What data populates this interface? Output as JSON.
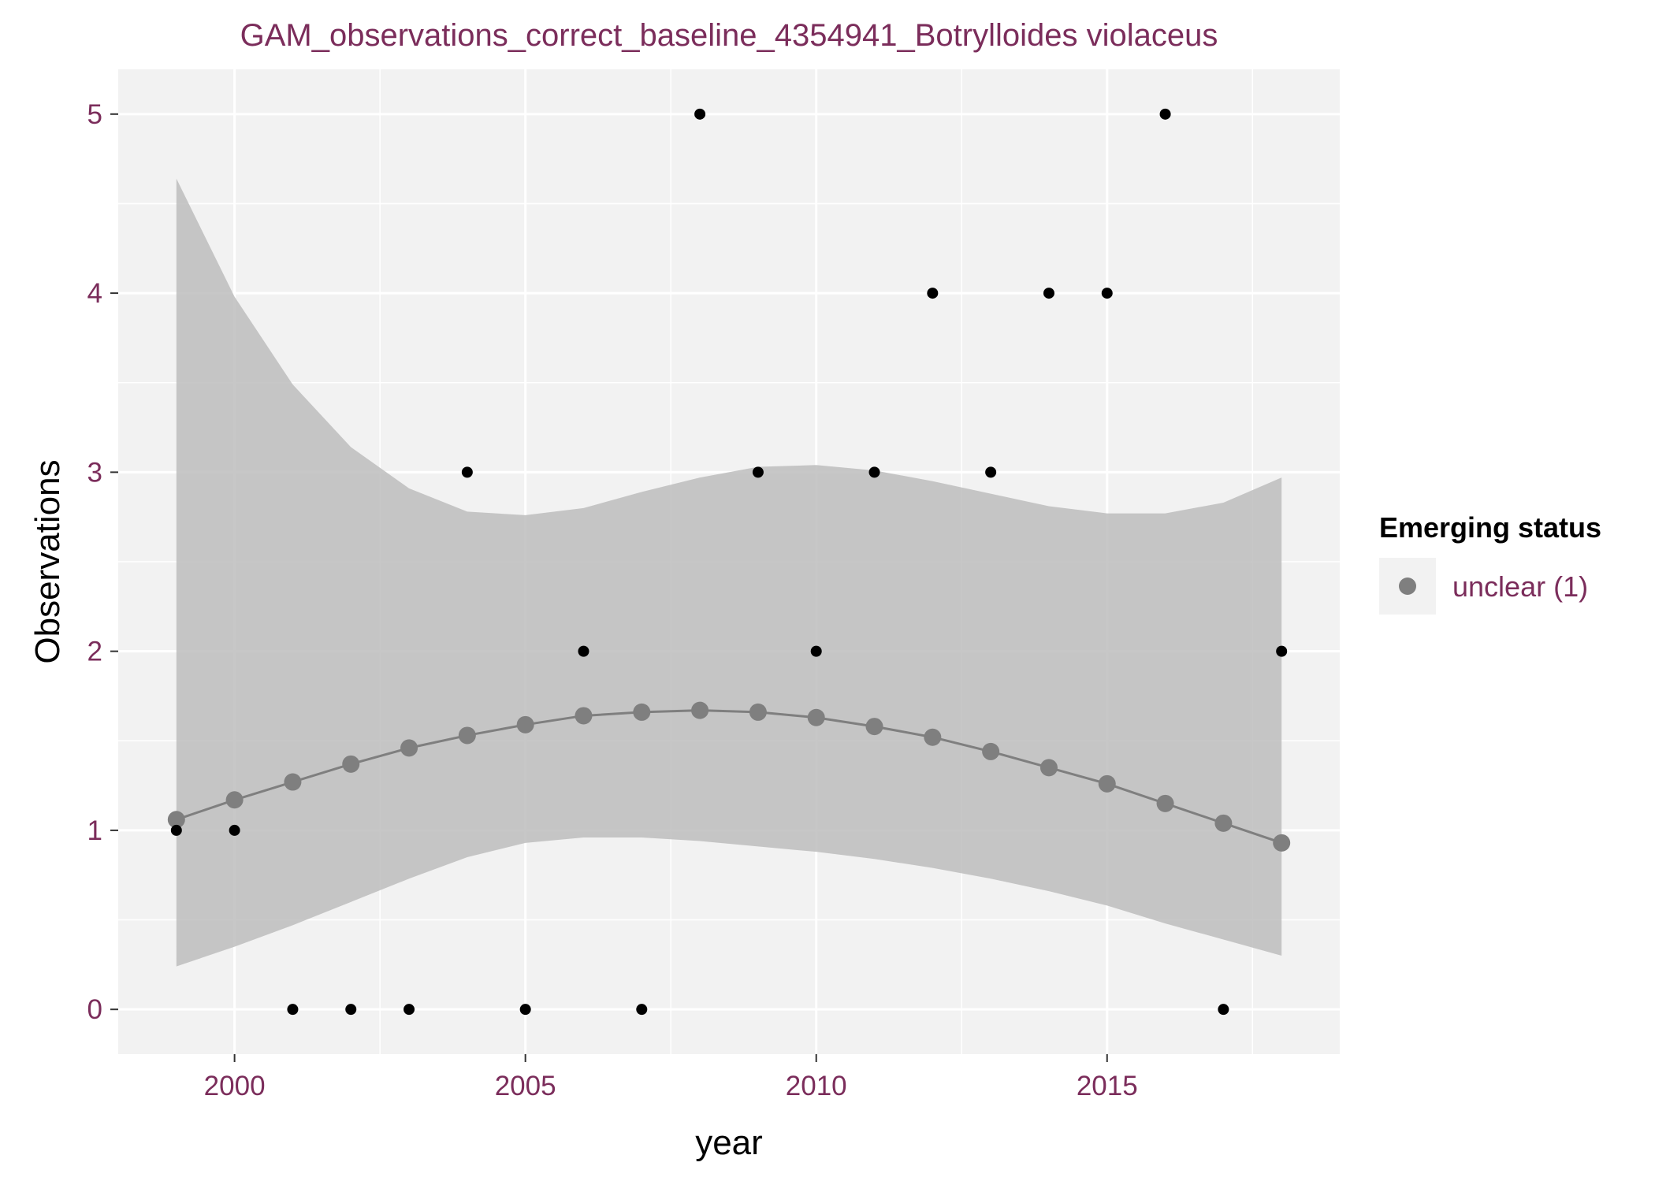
{
  "chart_data": {
    "type": "scatter",
    "title": "GAM_observations_correct_baseline_4354941_Botrylloides violaceus",
    "xlabel": "year",
    "ylabel": "Observations",
    "xlim": [
      1998,
      2019
    ],
    "ylim": [
      -0.25,
      5.25
    ],
    "x_ticks": [
      2000,
      2005,
      2010,
      2015
    ],
    "y_ticks": [
      0,
      1,
      2,
      3,
      4,
      5
    ],
    "grid": true,
    "legend": {
      "title": "Emerging status",
      "position": "right",
      "entries": [
        {
          "label": "unclear (1)",
          "color": "#7f7f7f"
        }
      ]
    },
    "series": [
      {
        "kind": "points",
        "color": "#000000",
        "x": [
          1999,
          2000,
          2001,
          2002,
          2003,
          2004,
          2005,
          2006,
          2007,
          2008,
          2009,
          2010,
          2011,
          2012,
          2013,
          2014,
          2015,
          2016,
          2017,
          2018
        ],
        "y": [
          1,
          1,
          0,
          0,
          0,
          3,
          0,
          2,
          0,
          5,
          3,
          2,
          3,
          4,
          3,
          4,
          4,
          5,
          0,
          2
        ]
      },
      {
        "name": "unclear (1)",
        "kind": "fitted",
        "color": "#7f7f7f",
        "x": [
          1999,
          2000,
          2001,
          2002,
          2003,
          2004,
          2005,
          2006,
          2007,
          2008,
          2009,
          2010,
          2011,
          2012,
          2013,
          2014,
          2015,
          2016,
          2017,
          2018
        ],
        "y": [
          1.06,
          1.17,
          1.27,
          1.37,
          1.46,
          1.53,
          1.59,
          1.64,
          1.66,
          1.67,
          1.66,
          1.63,
          1.58,
          1.52,
          1.44,
          1.35,
          1.26,
          1.15,
          1.04,
          0.93
        ]
      }
    ],
    "confidence_band": {
      "color": "#bdbdbd",
      "x": [
        1999,
        2000,
        2001,
        2002,
        2003,
        2004,
        2005,
        2006,
        2007,
        2008,
        2009,
        2010,
        2011,
        2012,
        2013,
        2014,
        2015,
        2016,
        2017,
        2018
      ],
      "lower": [
        0.24,
        0.35,
        0.47,
        0.6,
        0.73,
        0.85,
        0.93,
        0.96,
        0.96,
        0.94,
        0.91,
        0.88,
        0.84,
        0.79,
        0.73,
        0.66,
        0.58,
        0.48,
        0.39,
        0.3
      ],
      "upper": [
        4.64,
        3.98,
        3.49,
        3.14,
        2.91,
        2.78,
        2.76,
        2.8,
        2.89,
        2.97,
        3.03,
        3.04,
        3.01,
        2.95,
        2.88,
        2.81,
        2.77,
        2.77,
        2.83,
        2.97
      ]
    }
  }
}
